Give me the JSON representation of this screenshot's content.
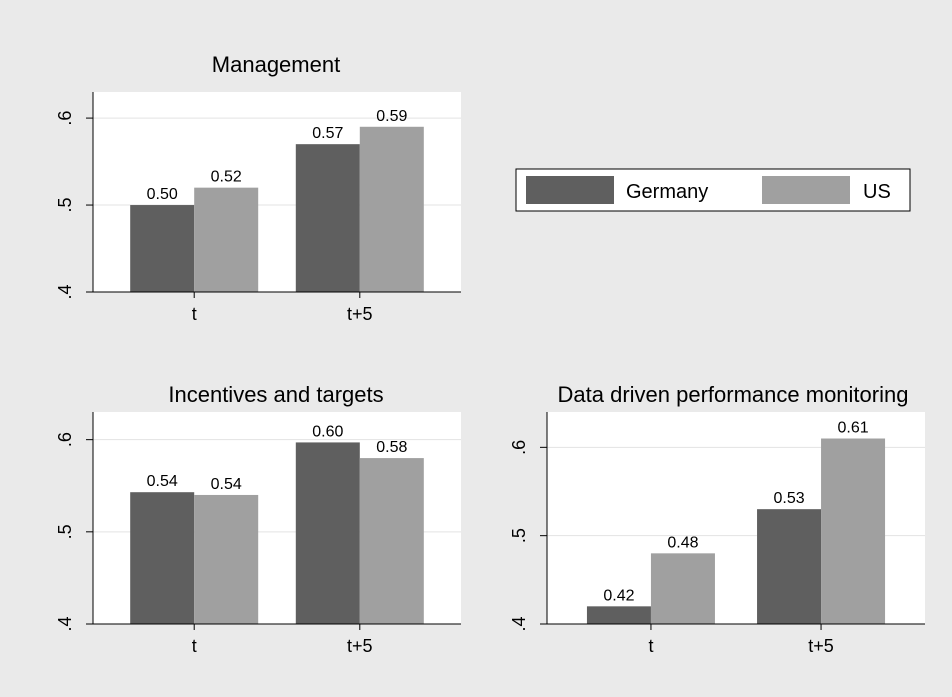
{
  "colors": {
    "page_bg": "#eaeaea",
    "plot_bg": "#ffffff",
    "grid": "#e3e3e3",
    "Germany": "#5f5f5f",
    "US": "#a0a0a0"
  },
  "legend": {
    "placement": "right",
    "items": [
      {
        "label": "Germany",
        "color": "#5f5f5f"
      },
      {
        "label": "US",
        "color": "#a0a0a0"
      }
    ]
  },
  "chart_data": [
    {
      "type": "bar",
      "title": "Management",
      "categories": [
        "t",
        "t+5"
      ],
      "series": [
        {
          "name": "Germany",
          "values": [
            0.5,
            0.57
          ],
          "labels": [
            "0.50",
            "0.57"
          ]
        },
        {
          "name": "US",
          "values": [
            0.52,
            0.59
          ],
          "labels": [
            "0.52",
            "0.59"
          ]
        }
      ],
      "ylim": [
        0.4,
        0.63
      ],
      "yticks": [
        ".4",
        ".5",
        ".6"
      ],
      "ytick_values": [
        0.4,
        0.5,
        0.6
      ],
      "grid": true
    },
    {
      "type": "bar",
      "title": "Incentives and targets",
      "categories": [
        "t",
        "t+5"
      ],
      "series": [
        {
          "name": "Germany",
          "values": [
            0.543,
            0.597
          ],
          "labels": [
            "0.54",
            "0.60"
          ]
        },
        {
          "name": "US",
          "values": [
            0.54,
            0.58
          ],
          "labels": [
            "0.54",
            "0.58"
          ]
        }
      ],
      "ylim": [
        0.4,
        0.63
      ],
      "yticks": [
        ".4",
        ".5",
        ".6"
      ],
      "ytick_values": [
        0.4,
        0.5,
        0.6
      ],
      "grid": true
    },
    {
      "type": "bar",
      "title": "Data driven performance monitoring",
      "categories": [
        "t",
        "t+5"
      ],
      "series": [
        {
          "name": "Germany",
          "values": [
            0.42,
            0.53
          ],
          "labels": [
            "0.42",
            "0.53"
          ]
        },
        {
          "name": "US",
          "values": [
            0.48,
            0.61
          ],
          "labels": [
            "0.48",
            "0.61"
          ]
        }
      ],
      "ylim": [
        0.4,
        0.64
      ],
      "yticks": [
        ".4",
        ".5",
        ".6"
      ],
      "ytick_values": [
        0.4,
        0.5,
        0.6
      ],
      "grid": true
    }
  ]
}
